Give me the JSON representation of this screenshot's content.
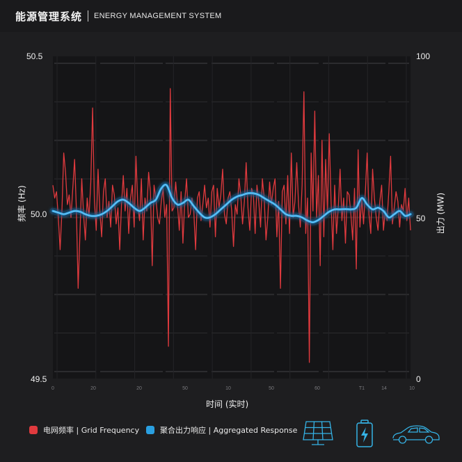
{
  "header": {
    "title_cn": "能源管理系统",
    "title_en": "ENERGY MANAGEMENT SYSTEM"
  },
  "colors": {
    "grid_frequency": "#e03a3e",
    "aggregated_response": "#2a9fe0",
    "icon": "#35b3e6",
    "background": "#1e1e20"
  },
  "legend": [
    {
      "label": "电网频率 | Grid Frequency",
      "color": "#e03a3e"
    },
    {
      "label": "聚合出力响应 | Aggregated Response",
      "color": "#2a9fe0"
    }
  ],
  "icons": [
    "solar-panel-icon",
    "battery-icon",
    "electric-car-icon"
  ],
  "chart_data": {
    "type": "line",
    "xlabel": "时间 (实时)",
    "ylabel_left": "频率 (Hz)",
    "ylabel_right": "出力 (MW)",
    "ylim_left": [
      49.5,
      50.5
    ],
    "ylim_right": [
      0,
      100
    ],
    "left_ticks": [
      "50.5",
      "50.0",
      "49.5"
    ],
    "right_ticks": [
      "100",
      "50",
      "0"
    ],
    "x_tick_labels": [
      "0",
      "20",
      "20",
      "50",
      "10",
      "50",
      "60",
      "T1",
      "14",
      "10"
    ],
    "grid": true,
    "series": [
      {
        "name": "电网频率 | Grid Frequency",
        "axis": "left",
        "values": [
          50.1,
          50.06,
          50.08,
          50.0,
          49.9,
          50.02,
          50.2,
          50.14,
          50.04,
          50.07,
          50.0,
          50.09,
          50.18,
          50.03,
          49.78,
          49.95,
          50.12,
          50.01,
          49.93,
          50.06,
          50.0,
          50.11,
          50.34,
          50.05,
          49.96,
          50.15,
          50.02,
          49.94,
          50.08,
          50.12,
          50.0,
          50.05,
          49.97,
          50.1,
          50.07,
          49.98,
          50.03,
          49.9,
          50.04,
          50.13,
          50.02,
          50.09,
          49.95,
          50.06,
          50.1,
          49.97,
          50.19,
          50.04,
          49.99,
          50.12,
          49.93,
          50.06,
          50.02,
          50.14,
          50.08,
          49.85,
          50.1,
          50.06,
          50.0,
          49.98,
          50.05,
          50.09,
          50.0,
          50.04,
          49.6,
          50.4,
          50.02,
          50.03,
          50.11,
          50.04,
          49.96,
          50.08,
          49.92,
          50.05,
          50.12,
          50.0,
          50.01,
          50.06,
          50.02,
          49.9,
          50.06,
          50.08,
          49.99,
          50.04,
          50.1,
          50.03,
          50.06,
          49.97,
          50.08,
          50.1,
          49.94,
          50.09,
          50.03,
          50.07,
          50.15,
          50.01,
          49.98,
          50.06,
          50.08,
          50.02,
          49.91,
          50.04,
          50.01,
          50.12,
          50.07,
          49.98,
          50.05,
          50.17,
          50.03,
          49.96,
          50.09,
          50.07,
          49.95,
          50.1,
          50.05,
          49.97,
          50.12,
          50.06,
          49.93,
          50.0,
          50.11,
          50.04,
          50.09,
          50.12,
          49.94,
          50.05,
          49.78,
          50.08,
          50.1,
          49.98,
          50.13,
          49.95,
          50.2,
          50.0,
          50.05,
          50.17,
          50.04,
          49.97,
          50.1,
          50.39,
          49.95,
          50.06,
          49.55,
          50.2,
          50.02,
          50.33,
          50.0,
          50.13,
          49.85,
          50.24,
          49.94,
          50.18,
          50.02,
          50.26,
          50.05,
          49.9,
          50.1,
          49.95,
          50.03,
          50.15,
          49.99,
          50.06,
          49.92,
          50.08,
          50.07,
          50.01,
          49.93,
          50.09,
          49.84,
          50.21,
          49.97,
          50.06,
          49.98,
          50.08,
          50.2,
          50.01,
          49.95,
          50.15,
          50.06,
          50.0,
          49.96,
          50.05,
          50.1,
          49.96,
          50.02,
          49.99,
          50.08,
          50.19,
          49.98,
          50.03,
          50.08,
          50.05,
          49.97,
          50.04,
          50.02,
          50.09,
          49.99,
          50.06,
          49.96
        ]
      },
      {
        "name": "聚合出力响应 | Aggregated Response",
        "axis": "right",
        "values": [
          52,
          51.5,
          51,
          51.5,
          52,
          51.8,
          51,
          50.5,
          50.5,
          51,
          52,
          53.5,
          55,
          55.5,
          54.5,
          53,
          52,
          53,
          54.5,
          55.5,
          59,
          60,
          56,
          54,
          54.5,
          55.5,
          53.5,
          51.5,
          50,
          50,
          51,
          52.5,
          54,
          55.5,
          56.5,
          57,
          57.5,
          57.5,
          57,
          56,
          55,
          54,
          52.5,
          51,
          50.5,
          50.5,
          50,
          49,
          48.5,
          49.2,
          50.5,
          51.8,
          52.5,
          52.5,
          52.6,
          52.5,
          53,
          56,
          54,
          52.5,
          53,
          52,
          50,
          51,
          52,
          50.5,
          51
        ]
      }
    ]
  }
}
